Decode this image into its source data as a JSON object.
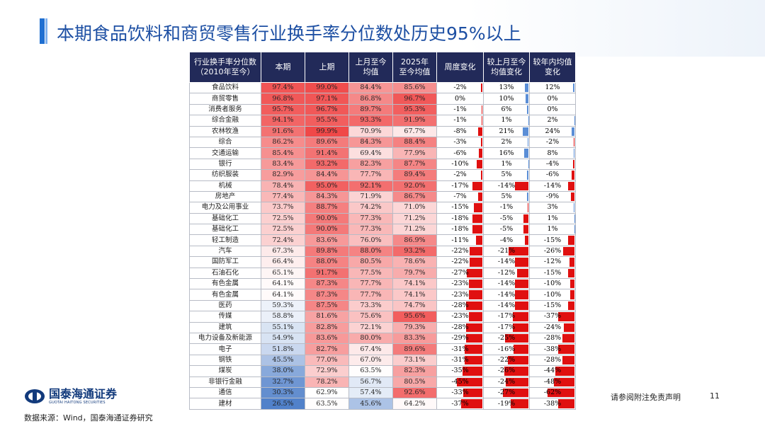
{
  "title": "本期食品饮料和商贸零售行业换手率分位数处历史95%以上",
  "table": {
    "headers": [
      [
        "行业换手率分位数",
        "（2010年至今）"
      ],
      [
        "本期"
      ],
      [
        "上期"
      ],
      [
        "上月至今",
        "均值"
      ],
      [
        "2025年",
        "至今均值"
      ],
      [
        "周度变化"
      ],
      [
        "较上月至今",
        "均值变化"
      ],
      [
        "较年内均值",
        "变化"
      ]
    ],
    "rows": [
      {
        "name": "食品饮料",
        "cur": 97.4,
        "prev": 99.0,
        "mtd": 84.4,
        "ytd": 85.6,
        "wk": -2,
        "vm": 13,
        "vy": 12
      },
      {
        "name": "商贸零售",
        "cur": 96.8,
        "prev": 97.1,
        "mtd": 86.8,
        "ytd": 96.7,
        "wk": 0,
        "vm": 10,
        "vy": 0
      },
      {
        "name": "消费者服务",
        "cur": 95.7,
        "prev": 96.7,
        "mtd": 89.7,
        "ytd": 95.3,
        "wk": -1,
        "vm": 6,
        "vy": 0
      },
      {
        "name": "综合金融",
        "cur": 94.1,
        "prev": 95.5,
        "mtd": 93.3,
        "ytd": 91.9,
        "wk": -1,
        "vm": 1,
        "vy": 2
      },
      {
        "name": "农林牧渔",
        "cur": 91.6,
        "prev": 99.9,
        "mtd": 70.9,
        "ytd": 67.7,
        "wk": -8,
        "vm": 21,
        "vy": 24
      },
      {
        "name": "综合",
        "cur": 86.2,
        "prev": 89.6,
        "mtd": 84.3,
        "ytd": 88.4,
        "wk": -3,
        "vm": 2,
        "vy": -2
      },
      {
        "name": "交通运输",
        "cur": 85.4,
        "prev": 91.4,
        "mtd": 69.4,
        "ytd": 77.9,
        "wk": -6,
        "vm": 16,
        "vy": 8
      },
      {
        "name": "银行",
        "cur": 83.4,
        "prev": 93.2,
        "mtd": 82.3,
        "ytd": 87.7,
        "wk": -10,
        "vm": 1,
        "vy": -4
      },
      {
        "name": "纺织服装",
        "cur": 82.9,
        "prev": 84.4,
        "mtd": 77.7,
        "ytd": 89.4,
        "wk": -2,
        "vm": 5,
        "vy": -6
      },
      {
        "name": "机械",
        "cur": 78.4,
        "prev": 95.0,
        "mtd": 92.1,
        "ytd": 92.0,
        "wk": -17,
        "vm": -14,
        "vy": -14
      },
      {
        "name": "房地产",
        "cur": 77.4,
        "prev": 84.3,
        "mtd": 71.9,
        "ytd": 86.7,
        "wk": -7,
        "vm": 5,
        "vy": -9
      },
      {
        "name": "电力及公用事业",
        "cur": 73.7,
        "prev": 88.7,
        "mtd": 74.2,
        "ytd": 71.0,
        "wk": -15,
        "vm": -1,
        "vy": 3
      },
      {
        "name": "基础化工",
        "cur": 72.5,
        "prev": 90.0,
        "mtd": 77.3,
        "ytd": 71.2,
        "wk": -18,
        "vm": -5,
        "vy": 1
      },
      {
        "name": "基础化工",
        "cur": 72.5,
        "prev": 90.0,
        "mtd": 77.3,
        "ytd": 71.2,
        "wk": -18,
        "vm": -5,
        "vy": 1
      },
      {
        "name": "轻工制造",
        "cur": 72.4,
        "prev": 83.6,
        "mtd": 76.0,
        "ytd": 86.9,
        "wk": -11,
        "vm": -4,
        "vy": -15
      },
      {
        "name": "汽车",
        "cur": 67.3,
        "prev": 89.8,
        "mtd": 88.0,
        "ytd": 93.2,
        "wk": -22,
        "vm": -21,
        "vy": -26
      },
      {
        "name": "国防军工",
        "cur": 66.4,
        "prev": 88.0,
        "mtd": 80.5,
        "ytd": 78.6,
        "wk": -22,
        "vm": -14,
        "vy": -12
      },
      {
        "name": "石油石化",
        "cur": 65.1,
        "prev": 91.7,
        "mtd": 77.5,
        "ytd": 79.7,
        "wk": -27,
        "vm": -12,
        "vy": -15
      },
      {
        "name": "有色金属",
        "cur": 64.1,
        "prev": 87.3,
        "mtd": 77.7,
        "ytd": 74.1,
        "wk": -23,
        "vm": -14,
        "vy": -10
      },
      {
        "name": "有色金属",
        "cur": 64.1,
        "prev": 87.3,
        "mtd": 77.7,
        "ytd": 74.1,
        "wk": -23,
        "vm": -14,
        "vy": -10
      },
      {
        "name": "医药",
        "cur": 59.3,
        "prev": 87.5,
        "mtd": 73.3,
        "ytd": 74.7,
        "wk": -28,
        "vm": -14,
        "vy": -15
      },
      {
        "name": "传媒",
        "cur": 58.8,
        "prev": 81.6,
        "mtd": 75.6,
        "ytd": 95.6,
        "wk": -23,
        "vm": -17,
        "vy": -37
      },
      {
        "name": "建筑",
        "cur": 55.1,
        "prev": 82.8,
        "mtd": 72.1,
        "ytd": 79.3,
        "wk": -28,
        "vm": -17,
        "vy": -24
      },
      {
        "name": "电力设备及新能源",
        "cur": 54.9,
        "prev": 83.6,
        "mtd": 80.0,
        "ytd": 83.3,
        "wk": -29,
        "vm": -25,
        "vy": -28
      },
      {
        "name": "电子",
        "cur": 51.8,
        "prev": 82.7,
        "mtd": 67.4,
        "ytd": 89.6,
        "wk": -31,
        "vm": -16,
        "vy": -38
      },
      {
        "name": "钢铁",
        "cur": 45.5,
        "prev": 77.0,
        "mtd": 67.0,
        "ytd": 73.1,
        "wk": -31,
        "vm": -22,
        "vy": -28
      },
      {
        "name": "煤炭",
        "cur": 38.0,
        "prev": 72.9,
        "mtd": 63.5,
        "ytd": 82.3,
        "wk": -35,
        "vm": -26,
        "vy": -44
      },
      {
        "name": "非银行金融",
        "cur": 32.7,
        "prev": 78.2,
        "mtd": 56.7,
        "ytd": 80.5,
        "wk": -45,
        "vm": -24,
        "vy": -48
      },
      {
        "name": "通信",
        "cur": 30.3,
        "prev": 62.9,
        "mtd": 57.4,
        "ytd": 92.6,
        "wk": -33,
        "vm": -27,
        "vy": -62
      },
      {
        "name": "建材",
        "cur": 26.5,
        "prev": 63.5,
        "mtd": 45.6,
        "ytd": 64.2,
        "wk": -37,
        "vm": -19,
        "vy": -38
      }
    ]
  },
  "colors": {
    "header": "#222a59",
    "pos_bar": "#5b8ed6",
    "neg_bar": "#e01010",
    "high": "#f04848",
    "mid": "#ffffff",
    "low": "#4f7fc9"
  },
  "logo": {
    "cn": "国泰海通证券",
    "en": "GUOTAI HAITONG SECURITIES"
  },
  "source": "数据来源：Wind，国泰海通证券研究",
  "disclaimer": "请参阅附注免责声明",
  "page_number": "11"
}
